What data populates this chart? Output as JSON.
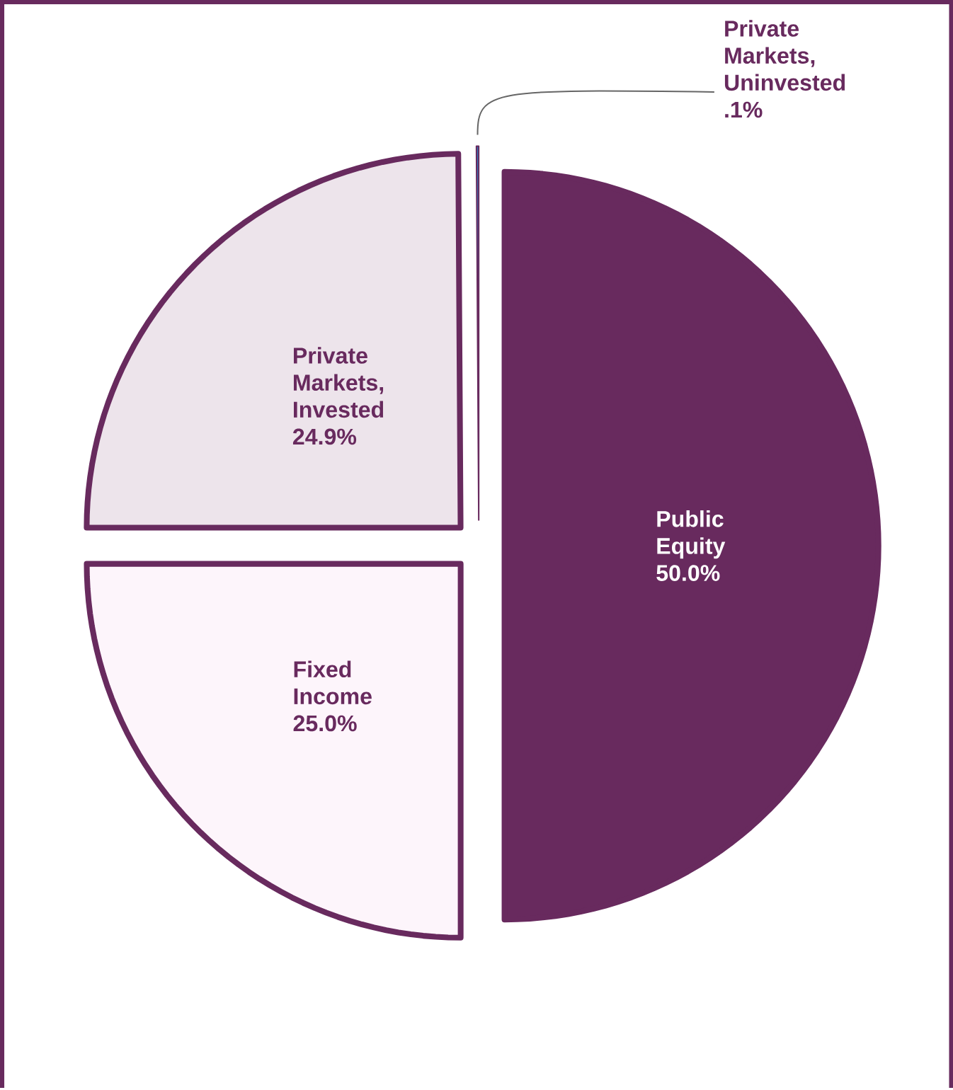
{
  "chart_data": {
    "type": "pie",
    "categories": [
      "Public Equity",
      "Fixed Income",
      "Private Markets, Invested",
      "Private Markets, Uninvested"
    ],
    "values": [
      50.0,
      25.0,
      24.9,
      0.1
    ],
    "value_labels": [
      "50.0%",
      "25.0%",
      "24.9%",
      ".1%"
    ],
    "colors": [
      "#682a5e",
      "#fdf5fb",
      "#ede4eb",
      "#2e75b6"
    ]
  }
}
